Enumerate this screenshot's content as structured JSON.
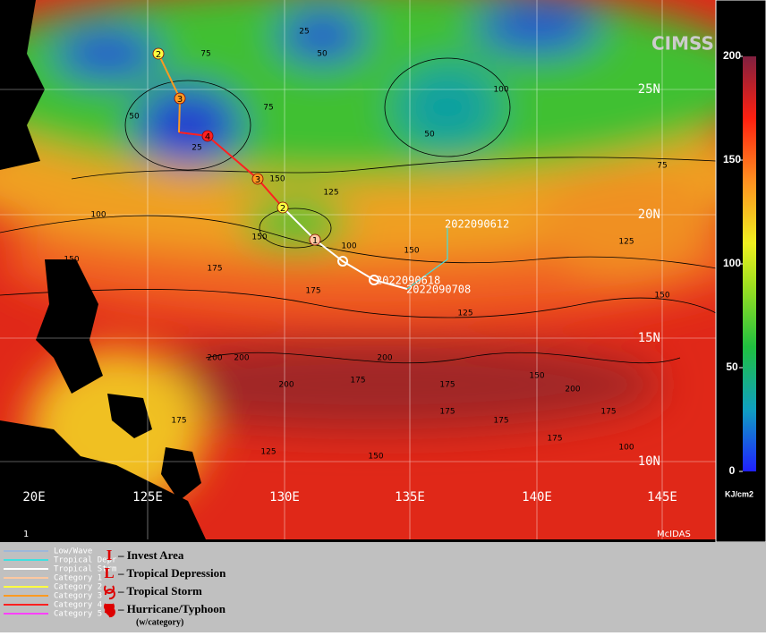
{
  "map": {
    "lat_labels": [
      "25N",
      "20N",
      "15N",
      "10N"
    ],
    "lon_labels": [
      "20E",
      "125E",
      "130E",
      "135E",
      "140E",
      "145E"
    ],
    "track_categories": [
      "1",
      "2",
      "3",
      "4",
      "3",
      "2"
    ],
    "date_labels": [
      "2022090612",
      "2022090618",
      "2022090708"
    ],
    "contour_labels": [
      25,
      50,
      75,
      75,
      50,
      25,
      50,
      100,
      125,
      150,
      100,
      150,
      175,
      150,
      175,
      200,
      175,
      200,
      175,
      150,
      200,
      175,
      150,
      125,
      100,
      75,
      125,
      150,
      175,
      200,
      150,
      175,
      125,
      100,
      150,
      175,
      200,
      175
    ],
    "corner_label": "1",
    "source": "McIDAS",
    "logo": "CIMSS"
  },
  "colorbar": {
    "range": [
      0,
      200
    ],
    "ticks": [
      0,
      50,
      100,
      150,
      200
    ],
    "unit": "KJ/cm2"
  },
  "legend": {
    "lines": [
      {
        "name": "Low/Wave",
        "color": "#9fb8d8"
      },
      {
        "name": "Tropical Depr",
        "color": "#40e0e0"
      },
      {
        "name": "Tropical Strm",
        "color": "#ffffff"
      },
      {
        "name": "Category 1",
        "color": "#ffc8a0"
      },
      {
        "name": "Category 2",
        "color": "#ffff40"
      },
      {
        "name": "Category 3",
        "color": "#ff9a20"
      },
      {
        "name": "Category 4",
        "color": "#ff2020"
      },
      {
        "name": "Category 5",
        "color": "#ff40ff"
      }
    ],
    "symbols": [
      {
        "mark": "I",
        "text": "– Invest Area"
      },
      {
        "mark": "L",
        "text": "– Tropical Depression"
      },
      {
        "text": "– Tropical Storm"
      },
      {
        "text": "– Hurricane/Typhoon"
      }
    ],
    "note": "(w/category)"
  }
}
